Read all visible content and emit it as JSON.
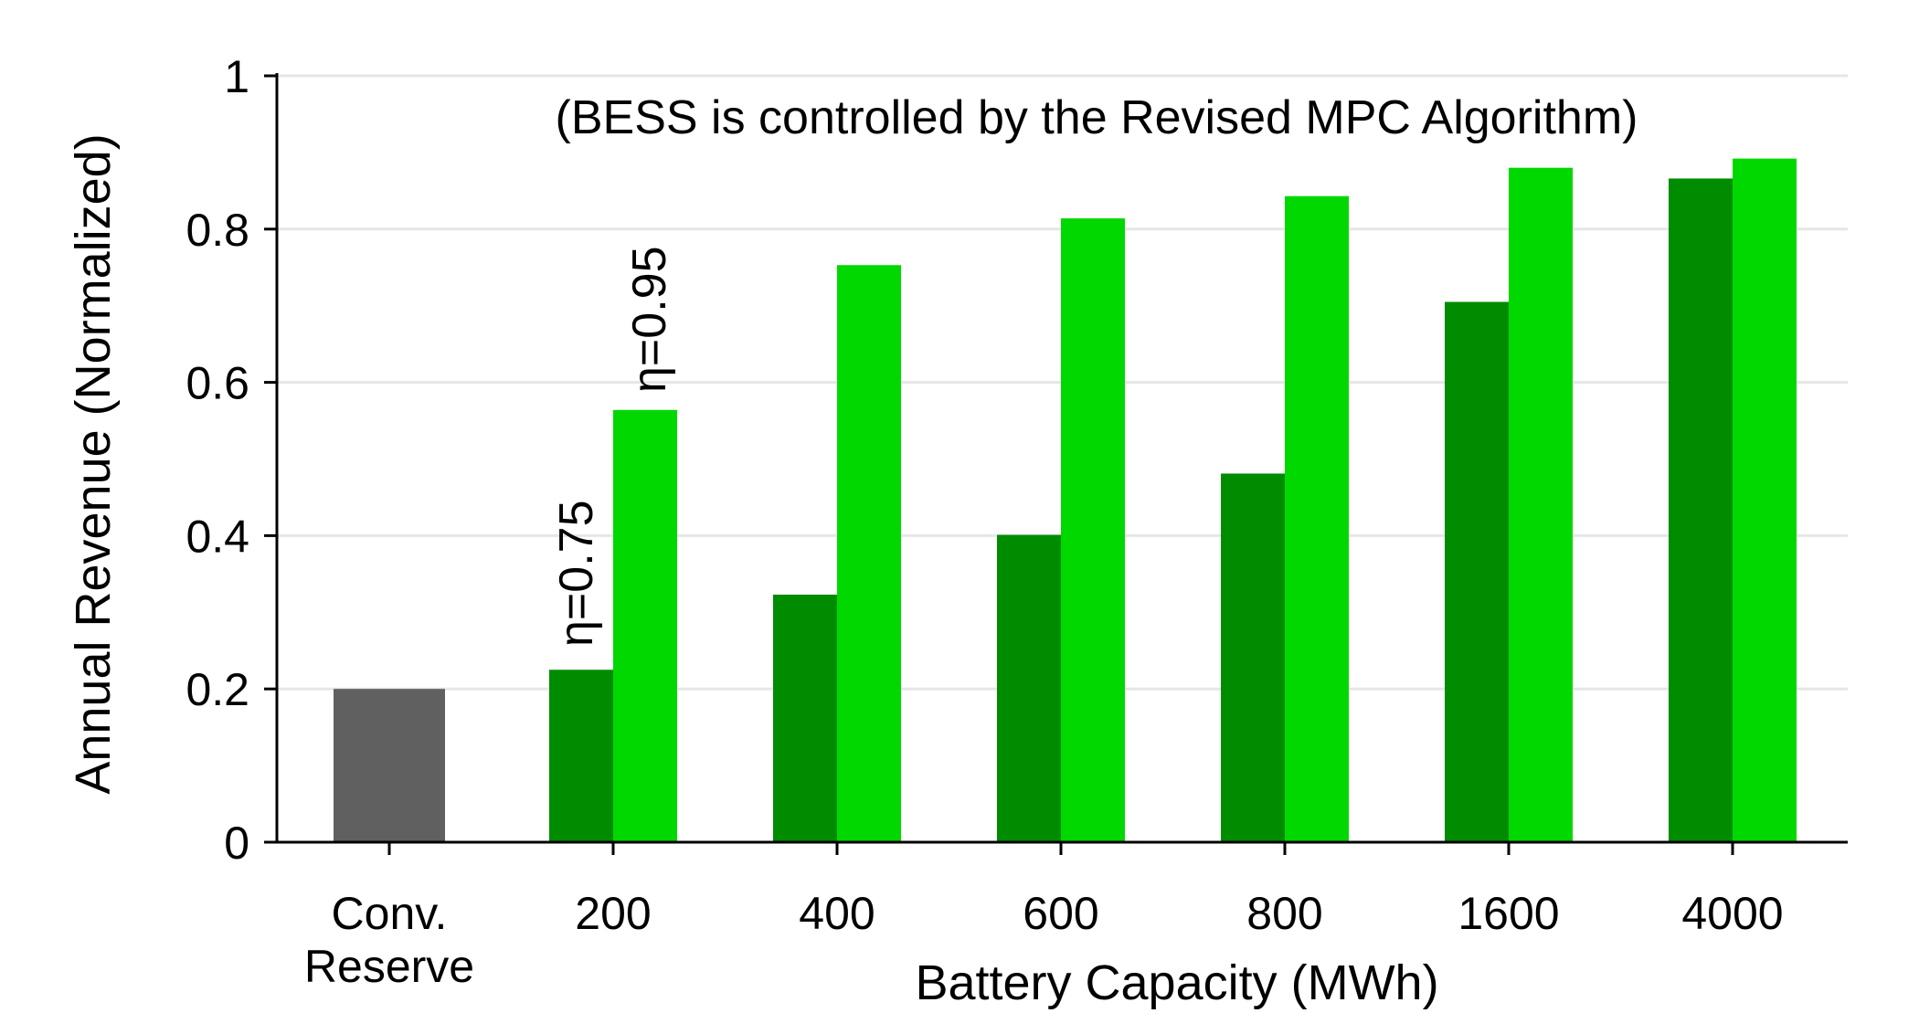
{
  "chart_data": {
    "type": "bar",
    "title": "",
    "annotation": "(BESS is controlled by the Revised MPC Algorithm)",
    "xlabel": "Battery Capacity (MWh)",
    "ylabel": "Annual Revenue (Normalized)",
    "ylim": [
      0,
      1
    ],
    "yticks": [
      0,
      0.2,
      0.4,
      0.6,
      0.8,
      1
    ],
    "ytick_labels": [
      "0",
      "0.2",
      "0.4",
      "0.6",
      "0.8",
      "1"
    ],
    "grid": "horizontal",
    "categories": [
      "Conv.\nReserve",
      "200",
      "400",
      "600",
      "800",
      "1600",
      "4000"
    ],
    "reference": {
      "category": "Conv.\nReserve",
      "value": 0.2,
      "color": "#606060"
    },
    "series": [
      {
        "name": "η=0.75",
        "color": "#008c00",
        "values": [
          null,
          0.225,
          0.323,
          0.401,
          0.481,
          0.705,
          0.866
        ]
      },
      {
        "name": "η=0.95",
        "color": "#00d800",
        "values": [
          null,
          0.564,
          0.753,
          0.814,
          0.843,
          0.88,
          0.892
        ]
      }
    ],
    "bar_labels": [
      "η=0.75",
      "η=0.95"
    ]
  }
}
